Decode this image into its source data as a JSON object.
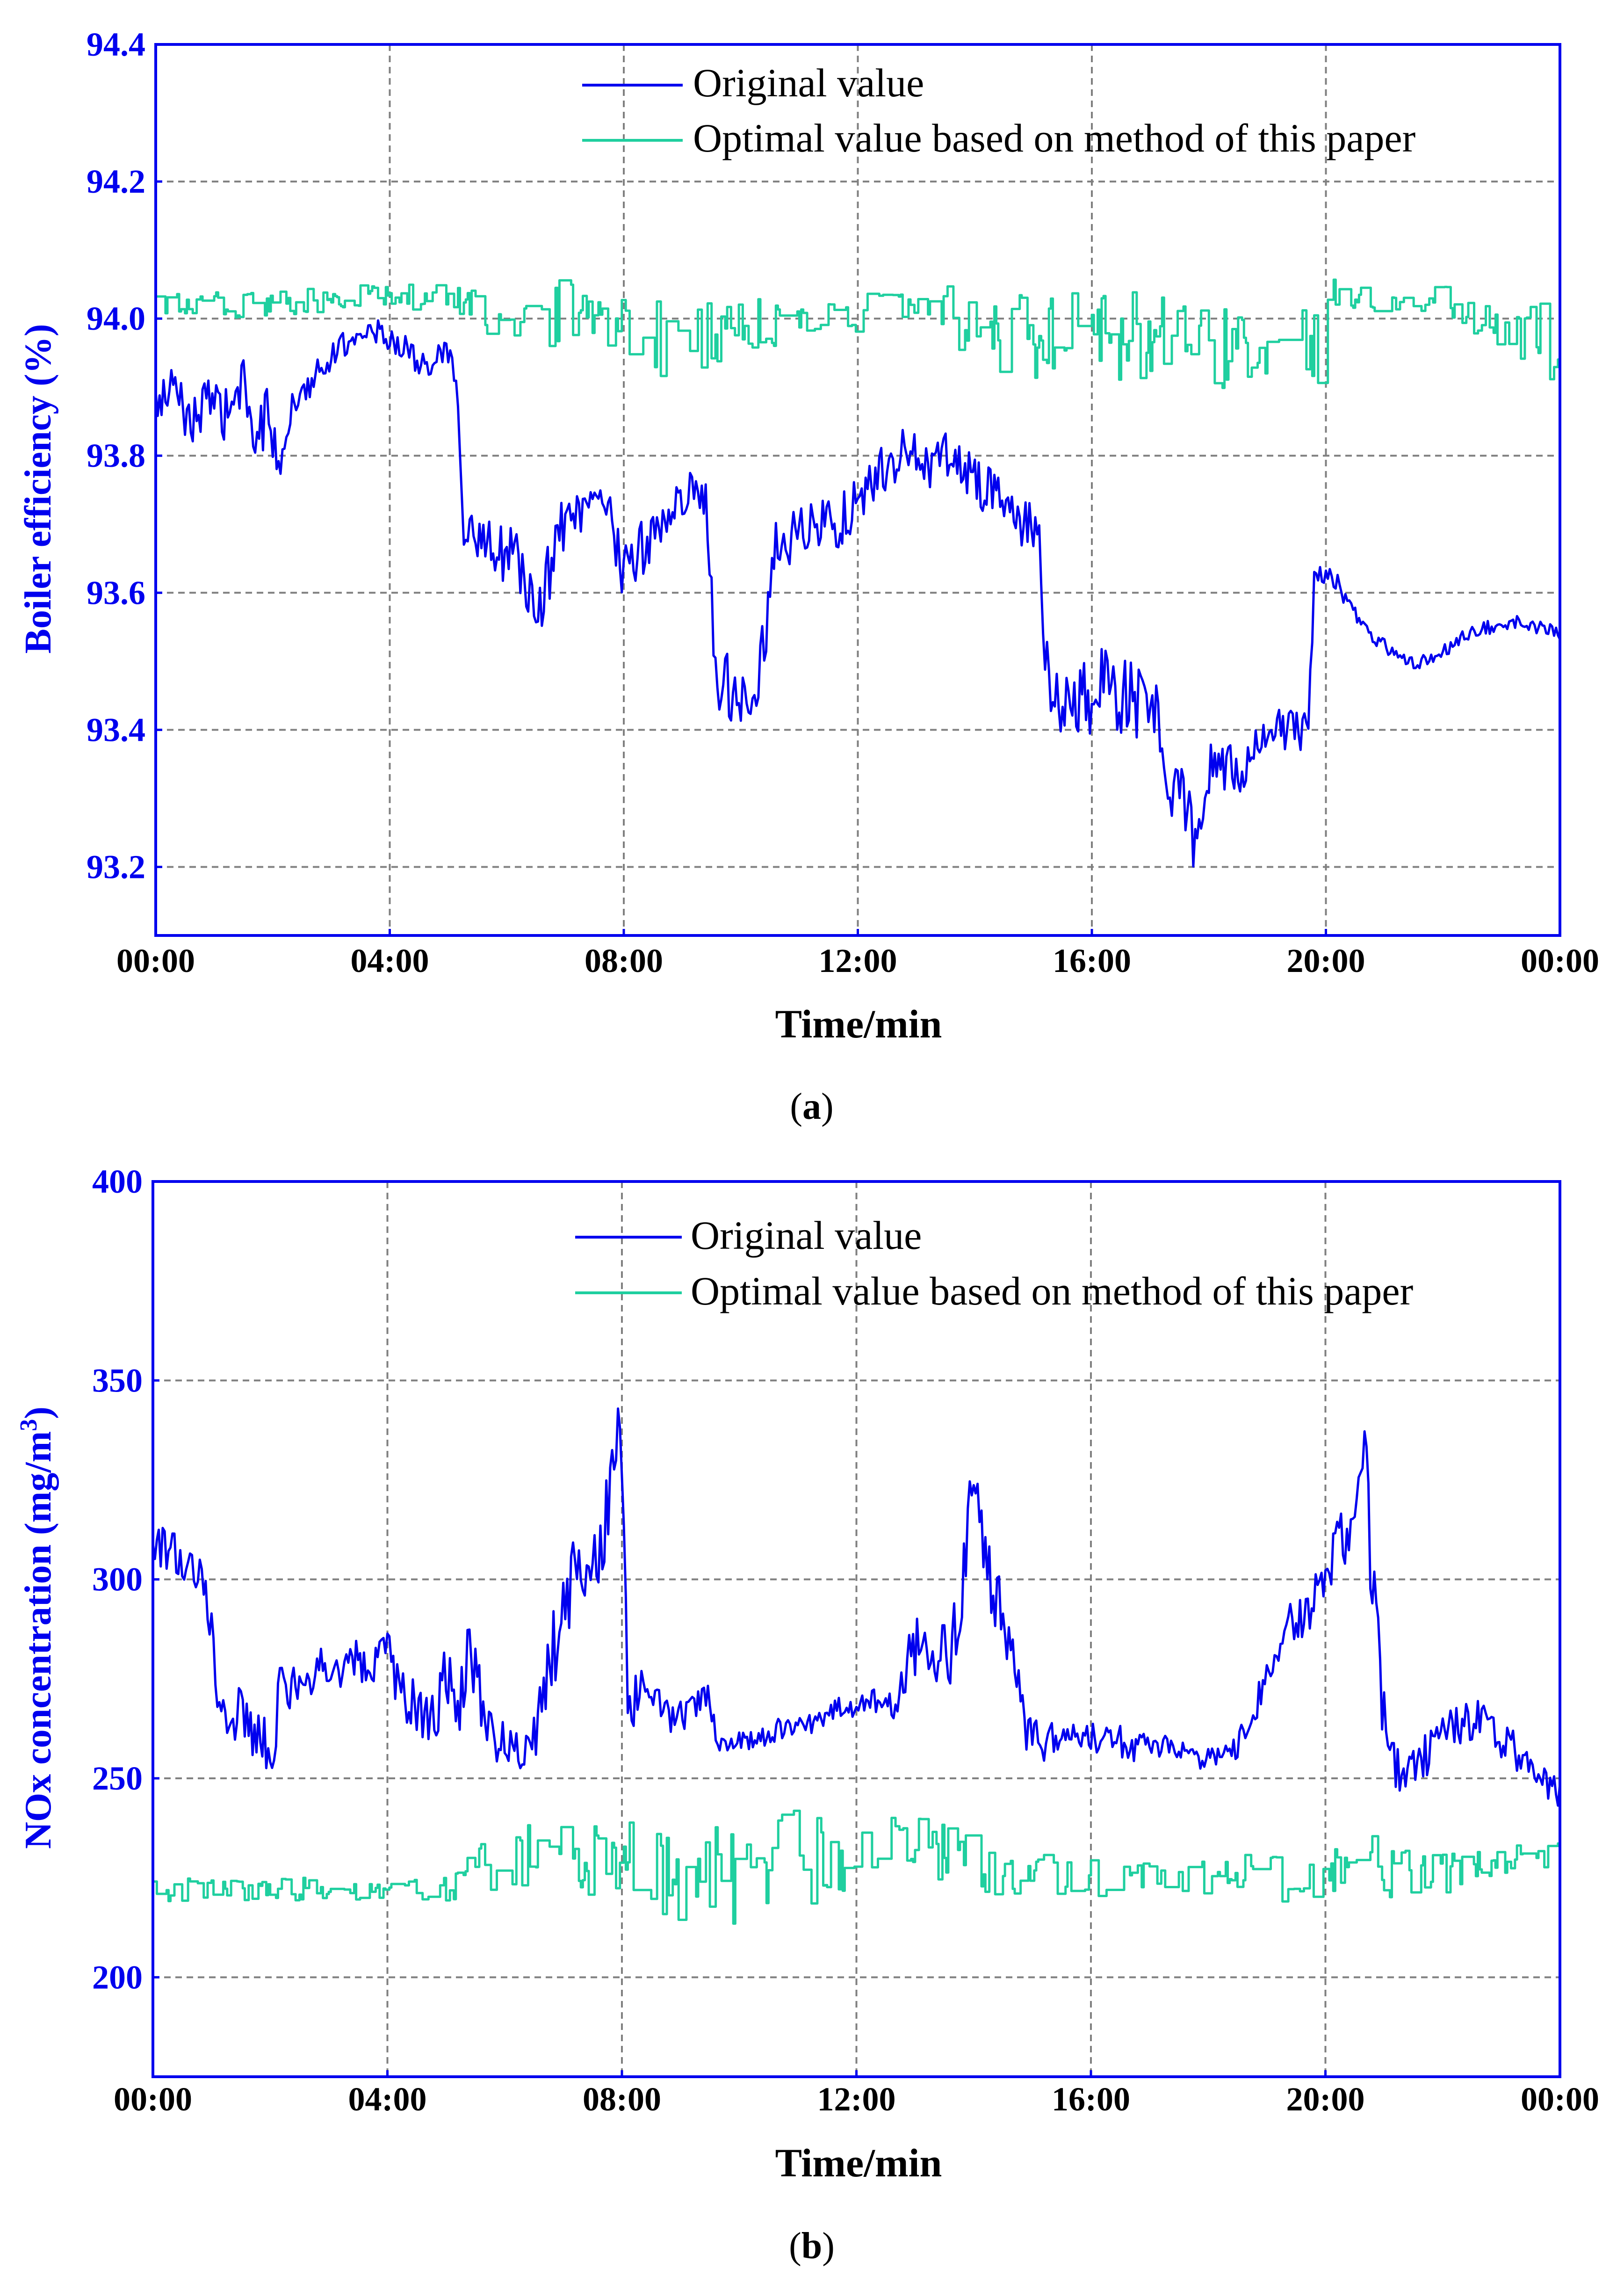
{
  "chart_data": [
    {
      "type": "line",
      "panel_label": "(a)",
      "panel_letter": "a",
      "title": "",
      "xlabel": "Time/min",
      "ylabel": "Boiler efficiency (%)",
      "x_ticks": [
        "00:00",
        "04:00",
        "08:00",
        "12:00",
        "16:00",
        "20:00",
        "00:00"
      ],
      "x_range": [
        0,
        24
      ],
      "ylim": [
        93.1,
        94.4
      ],
      "y_ticks": [
        "93.2",
        "93.4",
        "93.6",
        "93.8",
        "94.0",
        "94.2",
        "94.4"
      ],
      "grid": true,
      "legend_position": "top-right",
      "series": [
        {
          "name": "Original value",
          "color": "#0000ee",
          "x": [
            0,
            0.3,
            0.6,
            0.9,
            1.2,
            1.5,
            1.7,
            1.9,
            2.1,
            2.4,
            2.8,
            3.2,
            3.5,
            3.8,
            4.2,
            4.6,
            5.0,
            5.15,
            5.25,
            5.4,
            5.8,
            6.2,
            6.5,
            6.7,
            6.9,
            7.1,
            7.4,
            7.7,
            8.0,
            8.2,
            8.5,
            8.8,
            9.1,
            9.4,
            9.6,
            9.75,
            10.0,
            10.3,
            10.6,
            10.9,
            11.2,
            11.5,
            11.8,
            12.1,
            12.4,
            12.7,
            13.0,
            13.3,
            13.6,
            13.9,
            14.2,
            14.5,
            14.8,
            15.1,
            15.2,
            15.35,
            15.6,
            15.9,
            16.2,
            16.5,
            16.8,
            17.1,
            17.3,
            17.5,
            17.7,
            17.8,
            18.0,
            18.3,
            18.6,
            18.9,
            19.2,
            19.5,
            19.7,
            19.8,
            20.0,
            20.3,
            20.6,
            20.9,
            21.2,
            21.5,
            21.8,
            22.1,
            22.4,
            22.7,
            23.0,
            23.3,
            23.6,
            24.0
          ],
          "values": [
            93.87,
            93.9,
            93.85,
            93.88,
            93.86,
            93.9,
            93.82,
            93.86,
            93.8,
            93.88,
            93.93,
            93.96,
            93.98,
            93.98,
            93.96,
            93.93,
            93.95,
            93.9,
            93.68,
            93.69,
            93.66,
            93.65,
            93.56,
            93.62,
            93.69,
            93.71,
            93.72,
            93.73,
            93.62,
            93.66,
            93.68,
            93.72,
            93.75,
            93.73,
            93.46,
            93.47,
            93.45,
            93.48,
            93.66,
            93.68,
            93.7,
            93.7,
            93.71,
            93.74,
            93.78,
            93.8,
            93.8,
            93.79,
            93.8,
            93.78,
            93.75,
            93.73,
            93.7,
            93.71,
            93.48,
            93.45,
            93.43,
            93.44,
            93.46,
            93.45,
            93.44,
            93.42,
            93.33,
            93.3,
            93.28,
            93.2,
            93.35,
            93.33,
            93.35,
            93.38,
            93.4,
            93.4,
            93.4,
            93.62,
            93.63,
            93.6,
            93.55,
            93.53,
            93.51,
            93.5,
            93.5,
            93.52,
            93.54,
            93.55,
            93.55,
            93.56,
            93.55,
            93.54
          ],
          "noise": [
            0.04,
            0.03,
            0.04,
            0.03,
            0.04,
            0.04,
            0.05,
            0.04,
            0.04,
            0.03,
            0.02,
            0.02,
            0.01,
            0.02,
            0.02,
            0.02,
            0.02,
            0.03,
            0.02,
            0.03,
            0.04,
            0.05,
            0.04,
            0.05,
            0.04,
            0.03,
            0.03,
            0.03,
            0.05,
            0.05,
            0.04,
            0.04,
            0.03,
            0.03,
            0.05,
            0.05,
            0.05,
            0.05,
            0.05,
            0.04,
            0.04,
            0.04,
            0.04,
            0.04,
            0.04,
            0.04,
            0.04,
            0.04,
            0.04,
            0.04,
            0.04,
            0.04,
            0.04,
            0.05,
            0.06,
            0.06,
            0.06,
            0.06,
            0.06,
            0.06,
            0.06,
            0.05,
            0.05,
            0.05,
            0.06,
            0.05,
            0.05,
            0.05,
            0.04,
            0.04,
            0.04,
            0.04,
            0.02,
            0.02,
            0.02,
            0.02,
            0.01,
            0.01,
            0.01,
            0.01,
            0.01,
            0.01,
            0.01,
            0.01,
            0.01,
            0.01,
            0.01,
            0.01
          ]
        },
        {
          "name": "Optimal value based on method of this paper",
          "color": "#1fcf9f",
          "x": [
            0,
            1.0,
            2.0,
            3.0,
            4.0,
            5.0,
            5.5,
            6.0,
            6.5,
            7.0,
            7.5,
            8.0,
            8.5,
            9.0,
            9.5,
            10.0,
            10.5,
            11.0,
            11.5,
            12.0,
            12.5,
            13.0,
            13.5,
            14.0,
            14.5,
            15.0,
            15.5,
            16.0,
            16.5,
            17.0,
            17.5,
            18.0,
            18.5,
            19.0,
            19.5,
            19.9,
            20.0,
            20.5,
            21.0,
            21.5,
            22.0,
            22.5,
            23.0,
            23.5,
            24.0
          ],
          "values": [
            94.02,
            94.02,
            94.02,
            94.03,
            94.03,
            94.03,
            94.01,
            94.0,
            94.0,
            94.01,
            94.0,
            94.0,
            93.97,
            93.96,
            93.98,
            94.0,
            93.99,
            94.01,
            94.0,
            94.01,
            94.02,
            94.02,
            94.02,
            93.97,
            93.98,
            93.97,
            93.98,
            93.97,
            93.97,
            93.97,
            93.97,
            93.96,
            93.97,
            93.96,
            93.96,
            93.97,
            94.04,
            94.03,
            94.02,
            94.03,
            94.03,
            94.0,
            94.0,
            93.97,
            93.96
          ],
          "noise": [
            0.02,
            0.02,
            0.02,
            0.02,
            0.02,
            0.02,
            0.03,
            0.03,
            0.04,
            0.05,
            0.05,
            0.05,
            0.06,
            0.06,
            0.05,
            0.04,
            0.04,
            0.03,
            0.03,
            0.03,
            0.02,
            0.02,
            0.03,
            0.06,
            0.06,
            0.06,
            0.07,
            0.07,
            0.07,
            0.07,
            0.07,
            0.07,
            0.07,
            0.07,
            0.07,
            0.07,
            0.02,
            0.02,
            0.02,
            0.02,
            0.02,
            0.03,
            0.04,
            0.06,
            0.07
          ]
        }
      ]
    },
    {
      "type": "line",
      "panel_label": "(b)",
      "panel_letter": "b",
      "title": "",
      "xlabel": "Time/min",
      "ylabel": "NOx concentration (mg/m",
      "ylabel_superscript": "3",
      "ylabel_close": ")",
      "x_ticks": [
        "00:00",
        "04:00",
        "08:00",
        "12:00",
        "16:00",
        "20:00",
        "00:00"
      ],
      "x_range": [
        0,
        24
      ],
      "ylim": [
        175,
        400
      ],
      "y_ticks": [
        "200",
        "250",
        "300",
        "350",
        "400"
      ],
      "grid": true,
      "legend_position": "top-right",
      "series": [
        {
          "name": "Original value",
          "color": "#0000ee",
          "x": [
            0,
            0.3,
            0.6,
            0.9,
            1.1,
            1.3,
            1.6,
            1.8,
            2.0,
            2.2,
            2.5,
            2.8,
            3.1,
            3.4,
            3.7,
            4.0,
            4.2,
            4.5,
            4.8,
            5.0,
            5.2,
            5.4,
            5.6,
            5.8,
            6.0,
            6.2,
            6.4,
            6.6,
            6.8,
            7.0,
            7.2,
            7.4,
            7.6,
            7.8,
            7.95,
            8.0,
            8.1,
            8.3,
            8.6,
            8.9,
            9.2,
            9.5,
            9.6,
            9.8,
            10.2,
            10.6,
            11.0,
            11.4,
            11.8,
            12.2,
            12.5,
            12.7,
            12.9,
            13.1,
            13.3,
            13.6,
            13.8,
            14.0,
            14.3,
            14.6,
            14.9,
            15.2,
            15.5,
            15.8,
            16.1,
            16.4,
            16.7,
            17.0,
            17.4,
            17.8,
            18.2,
            18.5,
            18.8,
            19.1,
            19.4,
            19.7,
            20.0,
            20.3,
            20.6,
            20.65,
            20.8,
            21.0,
            21.3,
            21.6,
            21.9,
            22.2,
            22.5,
            22.8,
            23.1,
            23.4,
            23.7,
            24.0
          ],
          "values": [
            305,
            310,
            305,
            300,
            275,
            265,
            265,
            258,
            255,
            275,
            272,
            278,
            276,
            280,
            278,
            282,
            272,
            268,
            262,
            278,
            268,
            285,
            270,
            260,
            258,
            258,
            258,
            265,
            280,
            290,
            300,
            305,
            310,
            320,
            340,
            335,
            268,
            272,
            270,
            265,
            268,
            270,
            260,
            258,
            260,
            262,
            262,
            265,
            268,
            270,
            268,
            270,
            280,
            285,
            282,
            280,
            300,
            325,
            300,
            285,
            262,
            258,
            262,
            262,
            260,
            260,
            258,
            258,
            258,
            255,
            255,
            258,
            268,
            280,
            288,
            292,
            302,
            310,
            320,
            340,
            300,
            265,
            248,
            255,
            258,
            262,
            265,
            262,
            258,
            255,
            250,
            245
          ],
          "noise": [
            6,
            7,
            7,
            6,
            8,
            8,
            9,
            9,
            9,
            8,
            6,
            6,
            5,
            5,
            5,
            6,
            7,
            8,
            9,
            10,
            10,
            10,
            8,
            7,
            6,
            6,
            6,
            8,
            10,
            12,
            12,
            12,
            12,
            12,
            10,
            10,
            8,
            6,
            5,
            5,
            4,
            4,
            4,
            4,
            3,
            3,
            3,
            3,
            3,
            4,
            4,
            5,
            8,
            8,
            8,
            8,
            10,
            10,
            10,
            8,
            5,
            5,
            4,
            4,
            4,
            4,
            4,
            3,
            3,
            3,
            3,
            3,
            4,
            5,
            6,
            6,
            7,
            8,
            10,
            12,
            12,
            8,
            6,
            6,
            6,
            6,
            6,
            6,
            5,
            5,
            4,
            4
          ]
        },
        {
          "name": "Optimal value based on method of this paper",
          "color": "#1fcf9f",
          "x": [
            0,
            1.0,
            2.0,
            3.0,
            4.0,
            5.0,
            5.5,
            6.0,
            6.5,
            7.0,
            7.5,
            8.0,
            8.5,
            9.0,
            9.5,
            10.0,
            10.5,
            11.0,
            11.5,
            12.0,
            12.5,
            13.0,
            13.5,
            14.0,
            14.5,
            15.0,
            15.5,
            16.0,
            16.5,
            17.0,
            17.5,
            18.0,
            18.5,
            19.0,
            19.5,
            20.0,
            20.5,
            21.0,
            21.5,
            22.0,
            22.5,
            23.0,
            23.5,
            24.0
          ],
          "values": [
            222,
            222,
            222,
            222,
            222,
            222,
            228,
            228,
            230,
            230,
            230,
            230,
            226,
            226,
            226,
            228,
            228,
            228,
            228,
            230,
            232,
            236,
            232,
            228,
            226,
            226,
            225,
            225,
            225,
            225,
            225,
            225,
            225,
            225,
            225,
            225,
            232,
            228,
            226,
            226,
            228,
            229,
            230,
            230
          ],
          "noise": [
            3,
            3,
            3,
            3,
            2,
            3,
            8,
            8,
            9,
            9,
            10,
            10,
            12,
            12,
            14,
            16,
            16,
            14,
            12,
            10,
            10,
            10,
            8,
            8,
            6,
            6,
            6,
            5,
            5,
            5,
            5,
            5,
            6,
            6,
            6,
            6,
            8,
            8,
            8,
            6,
            4,
            4,
            4,
            4
          ]
        }
      ]
    }
  ]
}
